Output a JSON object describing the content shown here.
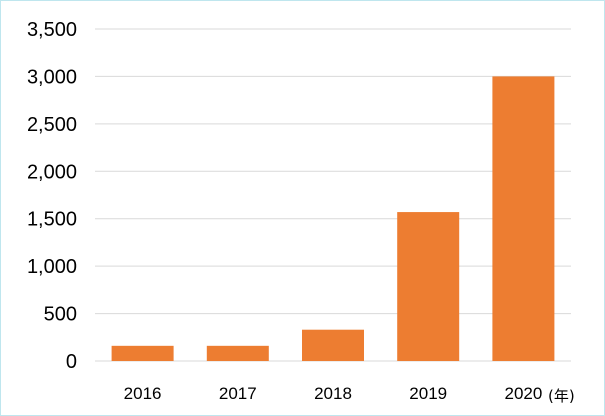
{
  "chart_data": {
    "type": "bar",
    "categories": [
      "2016",
      "2017",
      "2018",
      "2019",
      "2020"
    ],
    "values": [
      160,
      160,
      330,
      1570,
      3000
    ],
    "ylim": [
      0,
      3500
    ],
    "yticks": [
      "0",
      "500",
      "1,000",
      "1,500",
      "2,000",
      "2,500",
      "3,000",
      "3,500"
    ],
    "x_unit": "(年)",
    "grid": true,
    "bar_color": "#ed7d31",
    "grid_color": "#d9d9d9",
    "frame_color": "#bfe6ee"
  }
}
